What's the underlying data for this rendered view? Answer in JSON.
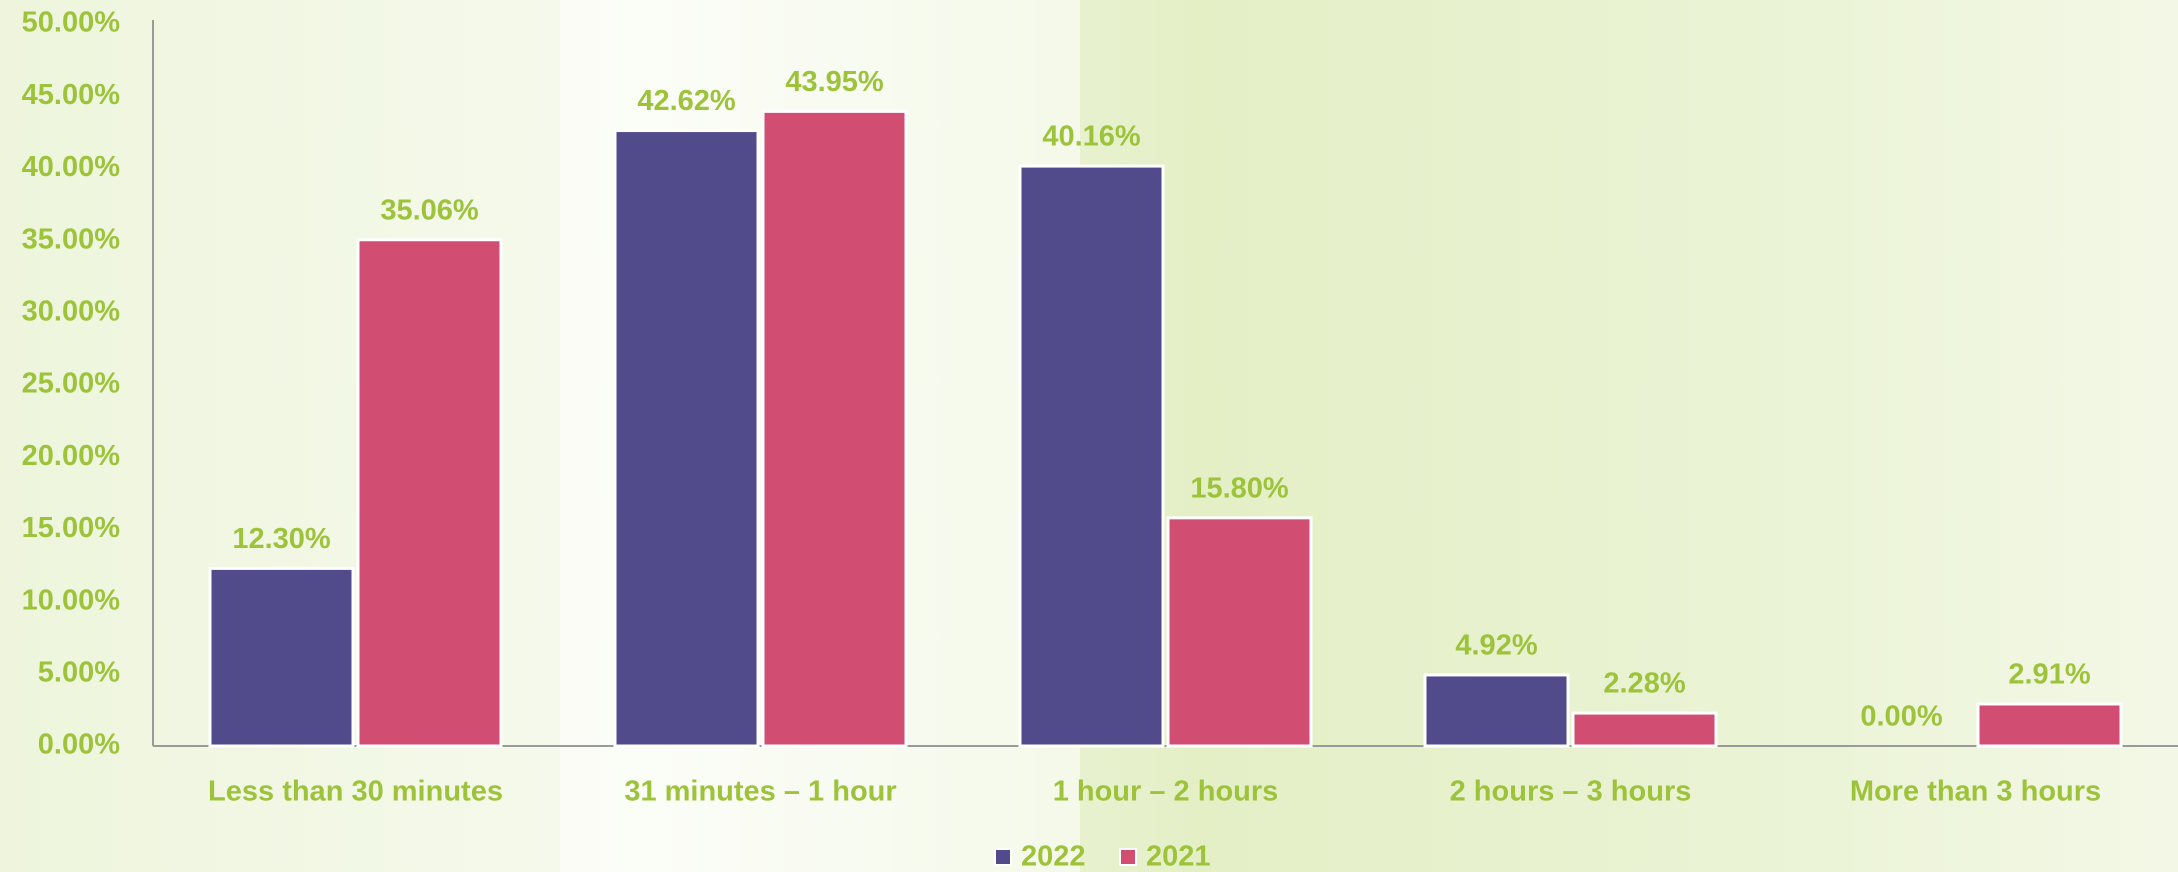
{
  "chart_data": {
    "type": "bar",
    "categories": [
      "Less than 30 minutes",
      "31 minutes – 1 hour",
      "1 hour – 2 hours",
      "2 hours – 3 hours",
      "More than 3 hours"
    ],
    "series": [
      {
        "name": "2022",
        "color": "#514a8b",
        "values": [
          12.3,
          42.62,
          40.16,
          4.92,
          0.0
        ],
        "value_labels": [
          "12.30%",
          "42.62%",
          "40.16%",
          "4.92%",
          "0.00%"
        ]
      },
      {
        "name": "2021",
        "color": "#d14d72",
        "values": [
          35.06,
          43.95,
          15.8,
          2.28,
          2.91
        ],
        "value_labels": [
          "35.06%",
          "43.95%",
          "15.80%",
          "2.28%",
          "2.91%"
        ]
      }
    ],
    "ylim": [
      0,
      50
    ],
    "yticks": [
      {
        "value": 0,
        "label": "0.00%"
      },
      {
        "value": 5,
        "label": "5.00%"
      },
      {
        "value": 10,
        "label": "10.00%"
      },
      {
        "value": 15,
        "label": "15.00%"
      },
      {
        "value": 20,
        "label": "20.00%"
      },
      {
        "value": 25,
        "label": "25.00%"
      },
      {
        "value": 30,
        "label": "30.00%"
      },
      {
        "value": 35,
        "label": "35.00%"
      },
      {
        "value": 40,
        "label": "40.00%"
      },
      {
        "value": 45,
        "label": "45.00%"
      },
      {
        "value": 50,
        "label": "50.00%"
      }
    ],
    "grid": false,
    "legend": "bottom"
  }
}
